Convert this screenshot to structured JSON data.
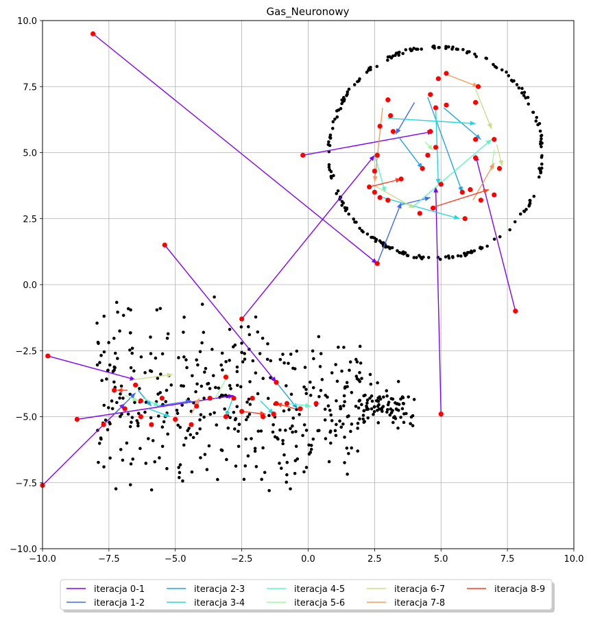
{
  "chart_data": {
    "type": "scatter",
    "title": "Gas_Neuronowy",
    "xlabel": "",
    "ylabel": "",
    "xlim": [
      -10,
      10
    ],
    "ylim": [
      -10,
      10
    ],
    "grid": true,
    "legend_position": "bottom-center",
    "xticks": [
      "-10.0",
      "-7.5",
      "-5.0",
      "-2.5",
      "0.0",
      "2.5",
      "5.0",
      "7.5",
      "10.0"
    ],
    "yticks": [
      "10.0",
      "7.5",
      "5.0",
      "2.5",
      "0.0",
      "-2.5",
      "-5.0",
      "-7.5",
      "-10.0"
    ],
    "colors": {
      "data_points": "#000000",
      "neurons": "#ff0000"
    },
    "series": [
      {
        "name": "iteracja 0-1",
        "color": "#8000ff",
        "segments": [
          [
            -8.1,
            9.5,
            2.6,
            0.8
          ],
          [
            -5.4,
            1.5,
            -1.2,
            -3.7
          ],
          [
            -9.8,
            -2.7,
            -6.5,
            -3.6
          ],
          [
            -10,
            -7.6,
            -6.9,
            -4.5
          ],
          [
            -8.7,
            -5.1,
            -2.8,
            -4.2
          ],
          [
            -2.5,
            -1.3,
            2.5,
            4.9
          ],
          [
            -0.2,
            4.9,
            4.7,
            5.8
          ],
          [
            7.8,
            -1.0,
            6.3,
            4.9
          ],
          [
            5.0,
            -4.9,
            4.8,
            3.7
          ]
        ]
      },
      {
        "name": "iteracja 1-2",
        "color": "#4068f4",
        "segments": [
          [
            2.6,
            0.8,
            3.5,
            3.1
          ],
          [
            -7.3,
            -4.9,
            -6.5,
            -4.1
          ],
          [
            -5.7,
            -4.6,
            -4.4,
            -4.4
          ],
          [
            4.0,
            6.9,
            3.3,
            5.7
          ],
          [
            3.4,
            3.0,
            4.6,
            3.3
          ]
        ]
      },
      {
        "name": "iteracja 2-3",
        "color": "#20a4e8",
        "segments": [
          [
            -1.2,
            -3.7,
            -0.4,
            -4.7
          ],
          [
            3.4,
            5.6,
            4.3,
            4.4
          ],
          [
            4.5,
            7.1,
            5.8,
            3.5
          ],
          [
            5.1,
            6.7,
            6.5,
            5.5
          ],
          [
            -6.4,
            -4.0,
            -5.9,
            -4.6
          ]
        ]
      },
      {
        "name": "iteracja 3-4",
        "color": "#20d8dc",
        "segments": [
          [
            -2.8,
            -4.2,
            -3.1,
            -5.0
          ],
          [
            3.0,
            6.3,
            6.3,
            6.1
          ],
          [
            2.8,
            3.3,
            5.7,
            2.5
          ],
          [
            4.8,
            6.7,
            4.9,
            3.8
          ],
          [
            -6.0,
            -4.7,
            -5.2,
            -5.0
          ],
          [
            -1.8,
            -4.4,
            -1.3,
            -4.9
          ]
        ]
      },
      {
        "name": "iteracja 4-5",
        "color": "#5af7c6",
        "segments": [
          [
            2.5,
            4.9,
            2.9,
            3.5
          ],
          [
            4.0,
            3.0,
            6.9,
            5.5
          ],
          [
            -6.2,
            -4.3,
            -5.6,
            -4.6
          ],
          [
            -0.8,
            -4.5,
            0.1,
            -4.6
          ]
        ]
      },
      {
        "name": "iteracja 5-6",
        "color": "#a2f7a6",
        "segments": [
          [
            -3.5,
            -4.3,
            -3.0,
            -3.4
          ],
          [
            -6.9,
            -4.2,
            -6.4,
            -4.4
          ],
          [
            7.0,
            5.1,
            6.9,
            4.3
          ],
          [
            4.4,
            5.4,
            4.7,
            5.1
          ]
        ]
      },
      {
        "name": "iteracja 6-7",
        "color": "#cbde8c",
        "segments": [
          [
            -6.6,
            -3.6,
            -5.1,
            -3.4
          ],
          [
            7.1,
            5.3,
            7.3,
            4.5
          ],
          [
            2.4,
            3.8,
            4.0,
            2.9
          ],
          [
            6.3,
            7.4,
            6.9,
            5.9
          ]
        ]
      },
      {
        "name": "iteracja 7-8",
        "color": "#fb9a5a",
        "segments": [
          [
            5.1,
            8.0,
            6.4,
            7.5
          ],
          [
            2.8,
            6.7,
            2.5,
            3.9
          ],
          [
            -4.4,
            -4.9,
            -4.1,
            -4.3
          ],
          [
            6.2,
            3.2,
            7.0,
            4.6
          ]
        ]
      },
      {
        "name": "iteracja 8-9",
        "color": "#ff3c1e",
        "segments": [
          [
            2.3,
            3.7,
            3.5,
            4.0
          ],
          [
            -2.5,
            -4.8,
            -1.6,
            -4.9
          ],
          [
            -6.8,
            -4.0,
            -7.2,
            -4.0
          ],
          [
            -0.5,
            -4.7,
            -1.2,
            -4.5
          ],
          [
            4.6,
            2.9,
            6.8,
            3.6
          ]
        ]
      }
    ],
    "neuron_points": [
      [
        -8.1,
        9.5
      ],
      [
        -5.4,
        1.5
      ],
      [
        -9.8,
        -2.7
      ],
      [
        -10,
        -7.6
      ],
      [
        -8.7,
        -5.1
      ],
      [
        -2.5,
        -1.3
      ],
      [
        -0.2,
        4.9
      ],
      [
        7.8,
        -1.0
      ],
      [
        5.0,
        -4.9
      ],
      [
        2.6,
        0.8
      ],
      [
        -6.5,
        -3.8
      ],
      [
        -6.9,
        -4.7
      ],
      [
        -7.3,
        -4.0
      ],
      [
        -6.3,
        -4.4
      ],
      [
        -7.7,
        -5.3
      ],
      [
        -5.9,
        -5.3
      ],
      [
        -5.0,
        -5.1
      ],
      [
        -4.4,
        -5.3
      ],
      [
        -4.2,
        -4.6
      ],
      [
        -3.7,
        -4.3
      ],
      [
        -3.1,
        -3.5
      ],
      [
        -3.1,
        -5.0
      ],
      [
        -2.8,
        -4.3
      ],
      [
        -2.5,
        -4.8
      ],
      [
        -2.1,
        -4.3
      ],
      [
        -1.7,
        -5.0
      ],
      [
        -1.3,
        -4.9
      ],
      [
        -1.2,
        -3.7
      ],
      [
        -1.2,
        -4.5
      ],
      [
        -0.8,
        -4.5
      ],
      [
        -0.3,
        -4.7
      ],
      [
        0.3,
        -4.5
      ],
      [
        2.3,
        3.7
      ],
      [
        2.5,
        4.3
      ],
      [
        2.6,
        4.9
      ],
      [
        2.7,
        3.3
      ],
      [
        2.5,
        3.5
      ],
      [
        3.0,
        3.2
      ],
      [
        3.5,
        4.0
      ],
      [
        2.7,
        6.0
      ],
      [
        3.0,
        7.0
      ],
      [
        3.1,
        6.4
      ],
      [
        3.2,
        5.8
      ],
      [
        4.2,
        2.7
      ],
      [
        4.3,
        4.4
      ],
      [
        4.6,
        7.2
      ],
      [
        4.6,
        5.8
      ],
      [
        4.7,
        2.9
      ],
      [
        4.8,
        5.2
      ],
      [
        4.8,
        6.7
      ],
      [
        4.9,
        7.8
      ],
      [
        5.0,
        3.8
      ],
      [
        5.2,
        6.8
      ],
      [
        5.2,
        8.0
      ],
      [
        5.8,
        3.5
      ],
      [
        5.9,
        2.5
      ],
      [
        6.1,
        3.6
      ],
      [
        6.3,
        5.5
      ],
      [
        6.3,
        6.9
      ],
      [
        6.3,
        4.8
      ],
      [
        6.5,
        3.2
      ],
      [
        6.4,
        7.5
      ],
      [
        7.0,
        5.5
      ],
      [
        7.0,
        3.4
      ],
      [
        7.2,
        4.4
      ],
      [
        4.5,
        4.9
      ],
      [
        -6.3,
        -5.0
      ],
      [
        -5.5,
        -4.3
      ]
    ]
  }
}
